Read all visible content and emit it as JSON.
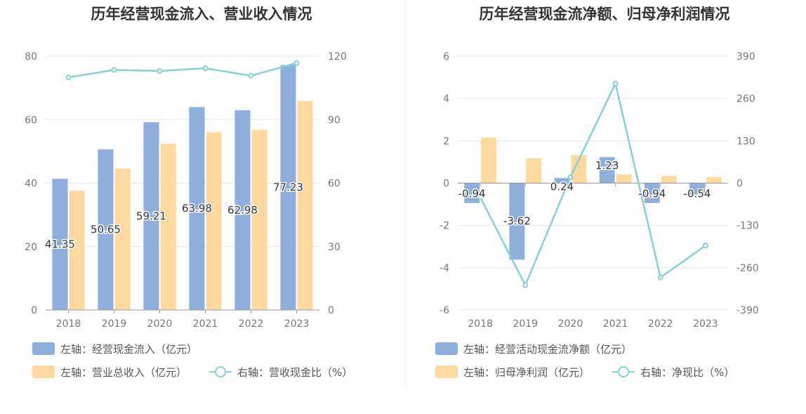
{
  "chart_data": [
    {
      "type": "bar",
      "title": "历年经营现金流入、营业收入情况",
      "categories": [
        "2018",
        "2019",
        "2020",
        "2021",
        "2022",
        "2023"
      ],
      "y_left_ticks": [
        "0",
        "20",
        "40",
        "60",
        "80"
      ],
      "y_right_ticks": [
        "0",
        "30",
        "60",
        "90",
        "120"
      ],
      "ylim_left": [
        0,
        80
      ],
      "ylim_right": [
        0,
        120
      ],
      "series": [
        {
          "name": "左轴：经营现金流入（亿元）",
          "kind": "bar",
          "axis": "left",
          "color": "#8eaedc",
          "values": [
            41.35,
            50.65,
            59.21,
            63.98,
            62.98,
            77.23
          ],
          "labels": [
            "41.35",
            "50.65",
            "59.21",
            "63.98",
            "62.98",
            "77.23"
          ]
        },
        {
          "name": "左轴：营业总收入（亿元）",
          "kind": "bar",
          "axis": "left",
          "color": "#fdd9a0",
          "values": [
            37.6,
            44.6,
            52.4,
            56.0,
            56.8,
            65.9
          ]
        },
        {
          "name": "右轴：营收现金比（%）",
          "kind": "line",
          "axis": "right",
          "color": "#85d0d6",
          "values": [
            110.0,
            113.5,
            113.0,
            114.3,
            110.8,
            116.8
          ]
        }
      ],
      "grid": true
    },
    {
      "type": "bar",
      "title": "历年经营现金流净额、归母净利润情况",
      "categories": [
        "2018",
        "2019",
        "2020",
        "2021",
        "2022",
        "2023"
      ],
      "y_left_ticks": [
        "-6",
        "-4",
        "-2",
        "0",
        "2",
        "4",
        "6"
      ],
      "y_right_ticks": [
        "-390",
        "-260",
        "-130",
        "0",
        "130",
        "260",
        "390"
      ],
      "ylim_left": [
        -6,
        6
      ],
      "ylim_right": [
        -390,
        390
      ],
      "series": [
        {
          "name": "左轴：经营活动现金流净额（亿元）",
          "kind": "bar",
          "axis": "left",
          "color": "#8eaedc",
          "values": [
            -0.94,
            -3.62,
            0.24,
            1.23,
            -0.94,
            -0.54
          ],
          "labels": [
            "-0.94",
            "-3.62",
            "0.24",
            "1.23",
            "-0.94",
            "-0.54"
          ]
        },
        {
          "name": "左轴：归母净利润（亿元）",
          "kind": "bar",
          "axis": "left",
          "color": "#fdd9a0",
          "values": [
            2.15,
            1.17,
            1.32,
            0.42,
            0.34,
            0.28
          ]
        },
        {
          "name": "右轴：净现比（%）",
          "kind": "line",
          "axis": "right",
          "color": "#85d0d6",
          "values": [
            -44,
            -314,
            18,
            306,
            -290,
            -192
          ]
        }
      ],
      "grid": true
    }
  ]
}
